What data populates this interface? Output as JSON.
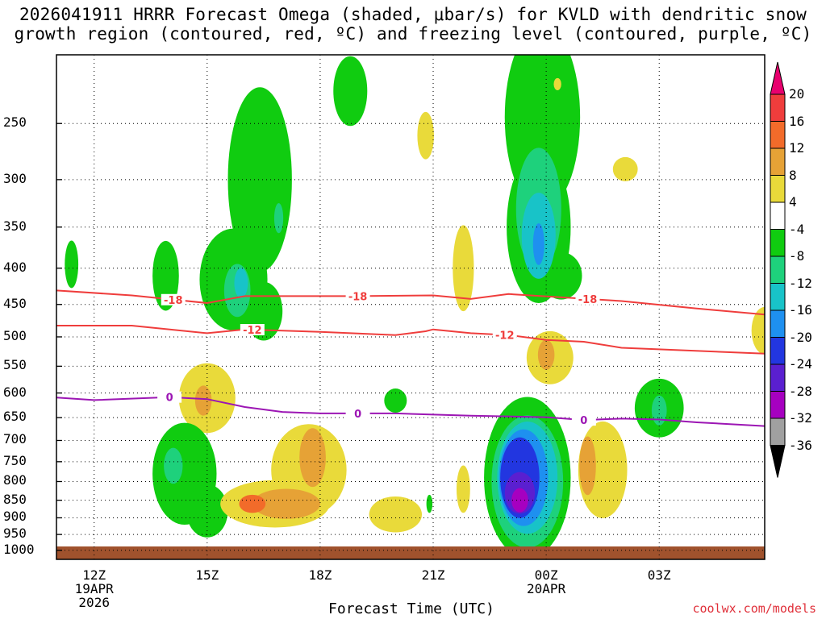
{
  "title_lines": [
    "2026041911 HRRR Forecast Omega (shaded, μbar/s) for KVLD with dendritic snow",
    "growth region (contoured, red, ºC) and freezing level (contoured, purple, ºC)"
  ],
  "credit": "coolwx.com/models",
  "chart_data": {
    "type": "time-height cross section (filled contour)",
    "title": "2026041911 HRRR Forecast Omega (shaded, μbar/s) for KVLD with dendritic snow growth region (contoured, red, ºC) and freezing level (contoured, purple, ºC)",
    "xlabel": "Forecast Time (UTC)",
    "ylabel": "",
    "x_range_hours": [
      11.0,
      29.8
    ],
    "y_range_hPa": [
      200,
      1030
    ],
    "y_scale": "log-pressure (inverted)",
    "grid": true,
    "x_ticks": [
      {
        "hour": 12,
        "label": "12Z",
        "sub1": "19APR",
        "sub2": "2026"
      },
      {
        "hour": 15,
        "label": "15Z",
        "sub1": "",
        "sub2": ""
      },
      {
        "hour": 18,
        "label": "18Z",
        "sub1": "",
        "sub2": ""
      },
      {
        "hour": 21,
        "label": "21Z",
        "sub1": "",
        "sub2": ""
      },
      {
        "hour": 24,
        "label": "00Z",
        "sub1": "20APR",
        "sub2": ""
      },
      {
        "hour": 27,
        "label": "03Z",
        "sub1": "",
        "sub2": ""
      }
    ],
    "y_ticks": [
      250,
      300,
      350,
      400,
      450,
      500,
      550,
      600,
      650,
      700,
      750,
      800,
      850,
      900,
      950,
      1000
    ],
    "colorbar": {
      "labels": [
        "20",
        "16",
        "12",
        "8",
        "4",
        "-4",
        "-8",
        "-12",
        "-16",
        "-20",
        "-24",
        "-28",
        "-32",
        "-36"
      ],
      "intervals": [
        {
          "range": ">20",
          "color": "#e8006e"
        },
        {
          "range": "16 to 20",
          "color": "#ef3d3c"
        },
        {
          "range": "12 to 16",
          "color": "#f26b2a"
        },
        {
          "range": "8 to 12",
          "color": "#e6a236"
        },
        {
          "range": "4 to 8",
          "color": "#e9da3a"
        },
        {
          "range": "-4 to 4",
          "color": "#ffffff"
        },
        {
          "range": "-8 to -4",
          "color": "#10cc10"
        },
        {
          "range": "-12 to -8",
          "color": "#1ed17c"
        },
        {
          "range": "-16 to -12",
          "color": "#18c3c8"
        },
        {
          "range": "-20 to -16",
          "color": "#1e90f0"
        },
        {
          "range": "-24 to -20",
          "color": "#2236e0"
        },
        {
          "range": "-28 to -24",
          "color": "#5a1fd0"
        },
        {
          "range": "-32 to -28",
          "color": "#a600c0"
        },
        {
          "range": "-36 to -32",
          "color": "#a0a0a0"
        },
        {
          "range": "<-36",
          "color": "#000000"
        }
      ]
    },
    "temperature_contours": [
      {
        "label": "-18",
        "color": "#ef3d3c",
        "points": [
          [
            11.0,
            430
          ],
          [
            13,
            437
          ],
          [
            15,
            448
          ],
          [
            16,
            438
          ],
          [
            19,
            438
          ],
          [
            21,
            437
          ],
          [
            22,
            442
          ],
          [
            23,
            435
          ],
          [
            26,
            445
          ],
          [
            28,
            456
          ],
          [
            29.8,
            465
          ]
        ],
        "label_hours": [
          14.1,
          19.0,
          25.1
        ]
      },
      {
        "label": "-12",
        "color": "#ef3d3c",
        "points": [
          [
            11.0,
            482
          ],
          [
            13,
            482
          ],
          [
            15,
            494
          ],
          [
            16,
            488
          ],
          [
            18,
            492
          ],
          [
            20,
            497
          ],
          [
            20.8,
            491
          ],
          [
            21,
            488
          ],
          [
            22,
            494
          ],
          [
            23,
            497
          ],
          [
            24,
            505
          ],
          [
            25,
            508
          ],
          [
            26,
            518
          ],
          [
            29.8,
            528
          ]
        ],
        "label_hours": [
          16.2,
          22.9
        ]
      },
      {
        "label": "0",
        "color": "#9c16b4",
        "points": [
          [
            11.0,
            609
          ],
          [
            12,
            614
          ],
          [
            14,
            608
          ],
          [
            15,
            612
          ],
          [
            16,
            628
          ],
          [
            17,
            638
          ],
          [
            18,
            641
          ],
          [
            20,
            641
          ],
          [
            22,
            646
          ],
          [
            24,
            649
          ],
          [
            25,
            655
          ],
          [
            26,
            652
          ],
          [
            27,
            654
          ],
          [
            28,
            660
          ],
          [
            29.8,
            668
          ]
        ],
        "label_hours": [
          14.0,
          19.0,
          25.0
        ]
      }
    ],
    "omega_features": [
      {
        "desc": "upper ascent core",
        "hour": 24.0,
        "hPa": 250,
        "min_value": -16
      },
      {
        "desc": "low-level ascent core",
        "hour": 23.4,
        "hPa": 850,
        "min_value": -32
      },
      {
        "desc": "low-level ascent",
        "hour": 14.5,
        "hPa": 800,
        "min_value": -12
      },
      {
        "desc": "mid-level ascent",
        "hour": 15.5,
        "hPa": 420,
        "min_value": -12
      },
      {
        "desc": "descent",
        "hour": 16.2,
        "hPa": 860,
        "max_value": 16
      },
      {
        "desc": "descent",
        "hour": 17.8,
        "hPa": 740,
        "max_value": 12
      },
      {
        "desc": "descent",
        "hour": 25.1,
        "hPa": 760,
        "max_value": 12
      },
      {
        "desc": "descent",
        "hour": 24.1,
        "hPa": 540,
        "max_value": 12
      },
      {
        "desc": "descent",
        "hour": 14.4,
        "hPa": 620,
        "max_value": 12
      },
      {
        "desc": "ascent",
        "hour": 27.0,
        "hPa": 640,
        "min_value": -12
      }
    ]
  }
}
